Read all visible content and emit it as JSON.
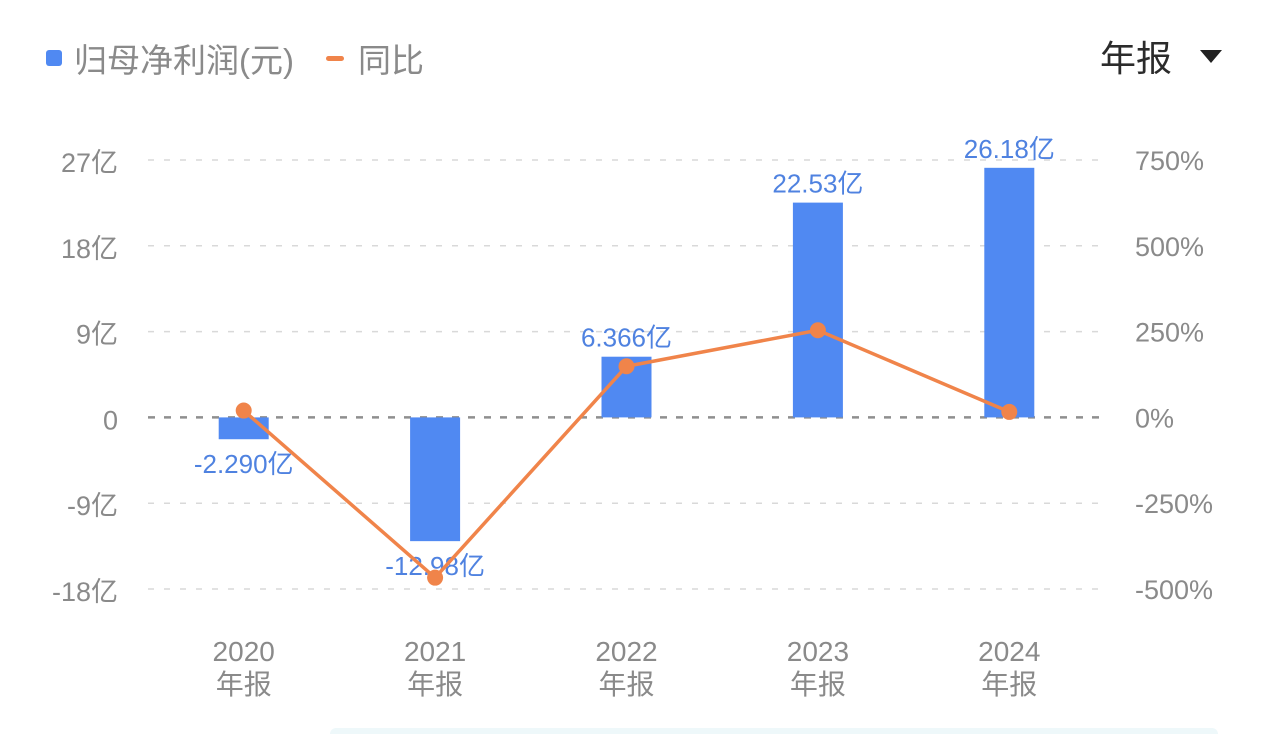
{
  "legend": {
    "bar_label": "归母净利润(元)",
    "line_label": "同比"
  },
  "period_select": {
    "label": "年报",
    "icon": "caret-down-icon"
  },
  "colors": {
    "bar": "#5089f2",
    "line": "#f0844a",
    "bar_label": "#4f82e0",
    "axis_text": "#8a8a8a",
    "grid": "#d9d9d9",
    "zero_line": "#8f8f8f"
  },
  "chart_data": {
    "type": "bar+line",
    "title": "",
    "categories": [
      "2020\n年报",
      "2021\n年报",
      "2022\n年报",
      "2023\n年报",
      "2024\n年报"
    ],
    "category_years": [
      "2020",
      "2021",
      "2022",
      "2023",
      "2024"
    ],
    "category_suffix": "年报",
    "series": [
      {
        "name": "归母净利润(元)",
        "type": "bar",
        "axis": "left",
        "unit": "亿",
        "values": [
          -2.29,
          -12.98,
          6.366,
          22.53,
          26.18
        ],
        "labels": [
          "-2.290亿",
          "-12.98亿",
          "6.366亿",
          "22.53亿",
          "26.18亿"
        ]
      },
      {
        "name": "同比",
        "type": "line",
        "axis": "right",
        "unit": "%",
        "values": [
          20,
          -467,
          149,
          254,
          16
        ]
      }
    ],
    "left_axis": {
      "ticks": [
        27,
        18,
        9,
        0,
        -9,
        -18
      ],
      "tick_labels": [
        "27亿",
        "18亿",
        "9亿",
        "0",
        "-9亿",
        "-18亿"
      ],
      "ylim": [
        -18,
        27
      ]
    },
    "right_axis": {
      "ticks": [
        750,
        500,
        250,
        0,
        -250,
        -500
      ],
      "tick_labels": [
        "750%",
        "500%",
        "250%",
        "0%",
        "-250%",
        "-500%"
      ],
      "ylim": [
        -500,
        750
      ]
    },
    "grid": true,
    "legend_position": "top-left"
  }
}
